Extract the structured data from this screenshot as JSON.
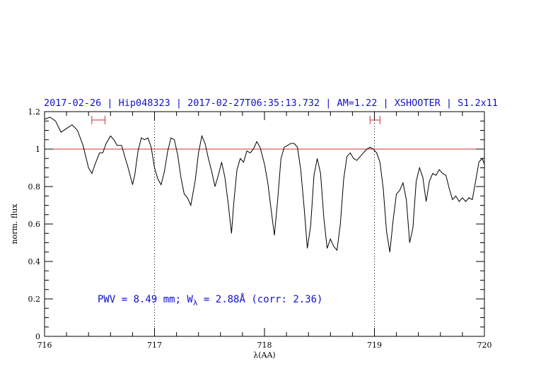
{
  "chart_data": {
    "type": "line",
    "title": "2017-02-26 | Hip048323 | 2017-02-27T06:35:13.732 | AM=1.22 | XSHOOTER | S1.2x11",
    "xlabel": "λ(AA)",
    "ylabel": "norm. flux",
    "xlim": [
      716,
      720
    ],
    "ylim": [
      0,
      1.2
    ],
    "xticks": [
      716,
      717,
      718,
      719,
      720
    ],
    "xtick_labels": [
      "716",
      "717",
      "718",
      "719",
      "720"
    ],
    "yticks": [
      0,
      0.2,
      0.4,
      0.6,
      0.8,
      1,
      1.2
    ],
    "ytick_labels": [
      "0",
      "0.2",
      "0.4",
      "0.6",
      "0.8",
      "1",
      "1.2"
    ],
    "reference_line_y": 1.0,
    "vertical_markers_x": [
      717,
      719
    ],
    "intervals": [
      {
        "x_start": 716.43,
        "x_end": 716.55,
        "y": 1.155
      },
      {
        "x_start": 718.96,
        "x_end": 719.05,
        "y": 1.155
      }
    ],
    "annotation": {
      "prefix": "PWV = 8.49 mm; W",
      "subscript": "λ",
      "suffix": " = 2.88Å (corr: 2.36)"
    },
    "colors": {
      "spectrum": "#000000",
      "reference": "#cc3333",
      "text": "#1010cc"
    },
    "series": [
      {
        "x": [
          716.0,
          716.05,
          716.1,
          716.15,
          716.2,
          716.25,
          716.3,
          716.35,
          716.4,
          716.43,
          716.46,
          716.5,
          716.53,
          716.56,
          716.6,
          716.63,
          716.66,
          716.7,
          716.73,
          716.76,
          716.8,
          716.82,
          716.85,
          716.88,
          716.91,
          716.94,
          716.97,
          717.0,
          717.03,
          717.06,
          717.09,
          717.12,
          717.15,
          717.18,
          717.21,
          717.24,
          717.27,
          717.3,
          717.33,
          717.37,
          717.4,
          717.43,
          717.46,
          717.49,
          717.52,
          717.55,
          717.58,
          717.61,
          717.64,
          717.67,
          717.7,
          717.72,
          717.75,
          717.78,
          717.81,
          717.84,
          717.87,
          717.9,
          717.93,
          717.96,
          718.0,
          718.03,
          718.06,
          718.09,
          718.12,
          718.15,
          718.18,
          718.21,
          718.24,
          718.27,
          718.3,
          718.33,
          718.36,
          718.39,
          718.42,
          718.45,
          718.48,
          718.51,
          718.54,
          718.57,
          718.6,
          718.63,
          718.66,
          718.69,
          718.72,
          718.75,
          718.78,
          718.81,
          718.84,
          718.87,
          718.9,
          718.93,
          718.96,
          718.99,
          719.02,
          719.05,
          719.08,
          719.11,
          719.14,
          719.17,
          719.2,
          719.23,
          719.26,
          719.29,
          719.32,
          719.35,
          719.38,
          719.41,
          719.44,
          719.47,
          719.5,
          719.53,
          719.56,
          719.59,
          719.62,
          719.65,
          719.68,
          719.71,
          719.74,
          719.77,
          719.8,
          719.83,
          719.86,
          719.89,
          719.92,
          719.95,
          719.98,
          720.0
        ],
        "y": [
          1.16,
          1.17,
          1.15,
          1.09,
          1.11,
          1.13,
          1.1,
          1.02,
          0.9,
          0.87,
          0.92,
          0.98,
          0.98,
          1.03,
          1.07,
          1.05,
          1.02,
          1.02,
          0.96,
          0.9,
          0.81,
          0.86,
          0.99,
          1.06,
          1.05,
          1.06,
          1.01,
          0.9,
          0.84,
          0.81,
          0.88,
          0.99,
          1.06,
          1.05,
          0.97,
          0.85,
          0.76,
          0.74,
          0.7,
          0.83,
          0.98,
          1.07,
          1.03,
          0.95,
          0.88,
          0.8,
          0.86,
          0.93,
          0.85,
          0.71,
          0.55,
          0.71,
          0.89,
          0.95,
          0.93,
          0.99,
          0.98,
          1.0,
          1.04,
          1.01,
          0.92,
          0.82,
          0.68,
          0.54,
          0.73,
          0.95,
          1.01,
          1.02,
          1.03,
          1.03,
          1.01,
          0.89,
          0.69,
          0.47,
          0.59,
          0.86,
          0.95,
          0.87,
          0.63,
          0.47,
          0.52,
          0.48,
          0.46,
          0.6,
          0.84,
          0.96,
          0.98,
          0.95,
          0.94,
          0.96,
          0.98,
          1.0,
          1.01,
          1.0,
          0.98,
          0.93,
          0.79,
          0.56,
          0.45,
          0.62,
          0.76,
          0.78,
          0.82,
          0.73,
          0.5,
          0.58,
          0.83,
          0.9,
          0.85,
          0.72,
          0.83,
          0.87,
          0.86,
          0.89,
          0.87,
          0.86,
          0.79,
          0.73,
          0.75,
          0.72,
          0.74,
          0.72,
          0.74,
          0.73,
          0.83,
          0.93,
          0.95,
          0.92
        ]
      }
    ]
  }
}
